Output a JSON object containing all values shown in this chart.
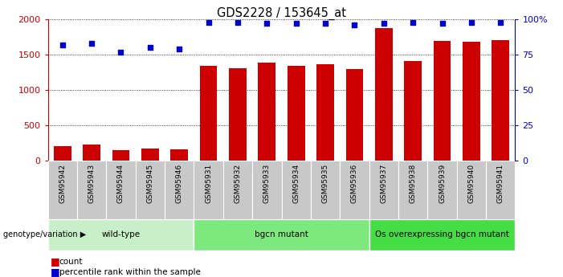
{
  "title": "GDS2228 / 153645_at",
  "samples": [
    "GSM95942",
    "GSM95943",
    "GSM95944",
    "GSM95945",
    "GSM95946",
    "GSM95931",
    "GSM95932",
    "GSM95933",
    "GSM95934",
    "GSM95935",
    "GSM95936",
    "GSM95937",
    "GSM95938",
    "GSM95939",
    "GSM95940",
    "GSM95941"
  ],
  "counts": [
    205,
    225,
    150,
    170,
    165,
    1340,
    1310,
    1390,
    1340,
    1360,
    1300,
    1880,
    1410,
    1700,
    1680,
    1710
  ],
  "percentiles": [
    82,
    83,
    77,
    80,
    79,
    98,
    98,
    97,
    97,
    97,
    96,
    97,
    98,
    97,
    98,
    98
  ],
  "percentile_scale": 20,
  "groups": [
    {
      "label": "wild-type",
      "start": 0,
      "end": 5,
      "color": "#c8f0c8"
    },
    {
      "label": "bgcn mutant",
      "start": 5,
      "end": 11,
      "color": "#7de87d"
    },
    {
      "label": "Os overexpressing bgcn mutant",
      "start": 11,
      "end": 16,
      "color": "#44dd44"
    }
  ],
  "bar_color": "#cc0000",
  "dot_color": "#0000cc",
  "ylim": [
    0,
    2000
  ],
  "yticks_left": [
    0,
    500,
    1000,
    1500,
    2000
  ],
  "yticks_right": [
    0,
    25,
    50,
    75,
    100
  ],
  "background_color": "#ffffff",
  "tick_bg_color": "#c8c8c8"
}
